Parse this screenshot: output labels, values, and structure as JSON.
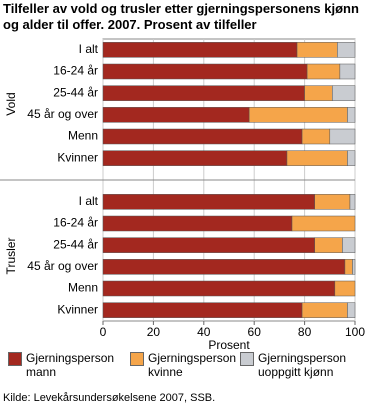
{
  "chart_data": {
    "type": "bar",
    "orientation": "horizontal",
    "stacked": true,
    "title": "Tilfeller av vold og trusler etter gjerningspersonens kjønn og alder til offer. 2007. Prosent av tilfeller",
    "groups": [
      {
        "name": "Vold",
        "categories": [
          "I alt",
          "16-24 år",
          "25-44 år",
          "45 år og over",
          "Menn",
          "Kvinner"
        ]
      },
      {
        "name": "Trusler",
        "categories": [
          "I alt",
          "16-24 år",
          "25-44 år",
          "45 år og over",
          "Menn",
          "Kvinner"
        ]
      }
    ],
    "series": [
      {
        "name": "Gjerningsperson mann",
        "color": "#a3281f",
        "values": [
          77,
          81,
          80,
          58,
          79,
          73,
          84,
          75,
          84,
          96,
          92,
          79
        ]
      },
      {
        "name": "Gjerningsperson kvinne",
        "color": "#f5a54a",
        "values": [
          16,
          13,
          11,
          39,
          11,
          24,
          14,
          25,
          11,
          3,
          8,
          18
        ]
      },
      {
        "name": "Gjerningsperson uoppgitt kjønn",
        "color": "#c9ccd1",
        "values": [
          7,
          6,
          9,
          3,
          10,
          3,
          2,
          0,
          5,
          1,
          0,
          3
        ]
      }
    ],
    "x_label": "Prosent",
    "xlim": [
      0,
      100
    ],
    "xticks": [
      0,
      20,
      40,
      60,
      80,
      100
    ],
    "grid": true,
    "source": "Kilde: Levekårsundersøkelsene 2007, SSB."
  }
}
